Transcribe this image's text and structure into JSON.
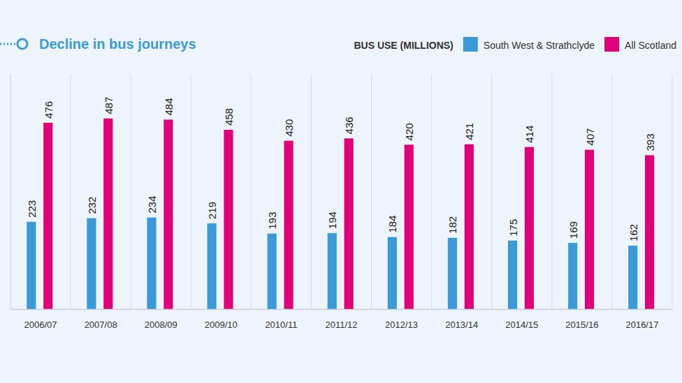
{
  "chart_data": {
    "type": "bar",
    "title": "Decline in bus journeys",
    "legend_title": "BUS USE (MILLIONS)",
    "categories": [
      "2006/07",
      "2007/08",
      "2008/09",
      "2009/10",
      "2010/11",
      "2011/12",
      "2012/13",
      "2013/14",
      "2014/15",
      "2015/16",
      "2016/17"
    ],
    "series": [
      {
        "name": "South West & Strathclyde",
        "color": "#3a9ad9",
        "values": [
          223,
          232,
          234,
          219,
          193,
          194,
          184,
          182,
          175,
          169,
          162
        ]
      },
      {
        "name": "All Scotland",
        "color": "#e0007a",
        "values": [
          476,
          487,
          484,
          458,
          430,
          436,
          420,
          421,
          414,
          407,
          393
        ]
      }
    ],
    "ylim": [
      0,
      600
    ],
    "data_labels": true,
    "tick_labels": "x",
    "legend": "top-right",
    "grid": false
  }
}
